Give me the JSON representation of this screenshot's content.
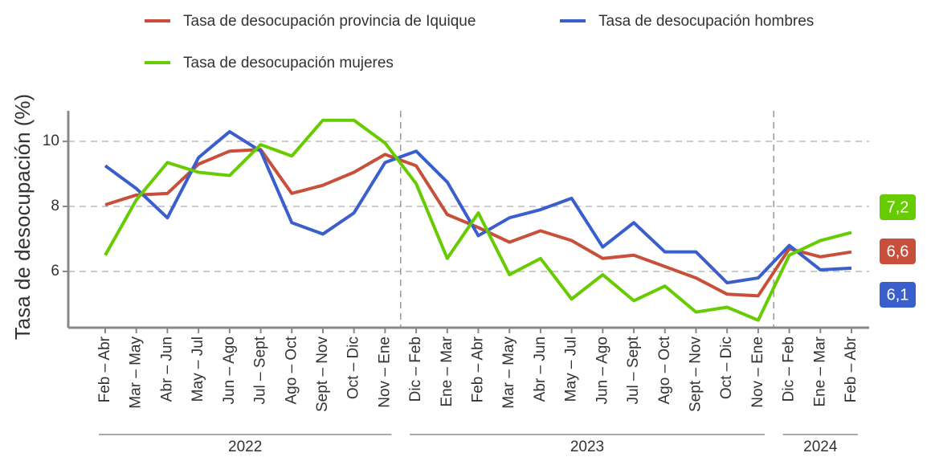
{
  "chart_data": {
    "type": "line",
    "y_label": "Tasa de desocupación (%)",
    "categories": [
      "Feb – Abr",
      "Mar – May",
      "Abr – Jun",
      "May – Jul",
      "Jun – Ago",
      "Jul – Sept",
      "Ago – Oct",
      "Sept – Nov",
      "Oct – Dic",
      "Nov – Ene",
      "Dic – Feb",
      "Ene – Mar",
      "Feb – Abr",
      "Mar – May",
      "Abr – Jun",
      "May – Jul",
      "Jun – Ago",
      "Jul – Sept",
      "Ago – Oct",
      "Sept – Nov",
      "Oct – Dic",
      "Nov – Ene",
      "Dic – Feb",
      "Ene – Mar",
      "Feb – Abr"
    ],
    "year_groups": [
      {
        "label": "2022",
        "from": 0,
        "to": 9
      },
      {
        "label": "2023",
        "from": 10,
        "to": 21
      },
      {
        "label": "2024",
        "from": 22,
        "to": 24
      }
    ],
    "series": [
      {
        "name": "Tasa de desocupación provincia de Iquique",
        "color": "#c8503a",
        "last_label": "6,6",
        "values": [
          8.05,
          8.35,
          8.4,
          9.3,
          9.7,
          9.75,
          8.4,
          8.65,
          9.05,
          9.6,
          9.25,
          7.75,
          7.35,
          6.9,
          7.25,
          6.95,
          6.4,
          6.5,
          6.15,
          5.8,
          5.3,
          5.25,
          6.7,
          6.45,
          6.6
        ]
      },
      {
        "name": "Tasa de desocupación hombres",
        "color": "#3a5fcd",
        "last_label": "6,1",
        "values": [
          9.25,
          8.55,
          7.65,
          9.5,
          10.3,
          9.7,
          7.5,
          7.15,
          7.8,
          9.35,
          9.7,
          8.75,
          7.1,
          7.65,
          7.9,
          8.25,
          6.75,
          7.5,
          6.6,
          6.6,
          5.65,
          5.8,
          6.8,
          6.05,
          6.1
        ]
      },
      {
        "name": "Tasa de desocupación mujeres",
        "color": "#66cc00",
        "last_label": "7,2",
        "values": [
          6.5,
          8.2,
          9.35,
          9.05,
          8.95,
          9.9,
          9.55,
          10.65,
          10.65,
          9.95,
          8.7,
          6.4,
          7.8,
          5.9,
          6.4,
          5.15,
          5.9,
          5.1,
          5.55,
          4.75,
          4.9,
          4.5,
          6.5,
          6.95,
          7.2
        ]
      }
    ],
    "ylim": [
      4.27,
      10.94
    ],
    "yticks": [
      6,
      8,
      10
    ],
    "grid": true
  }
}
